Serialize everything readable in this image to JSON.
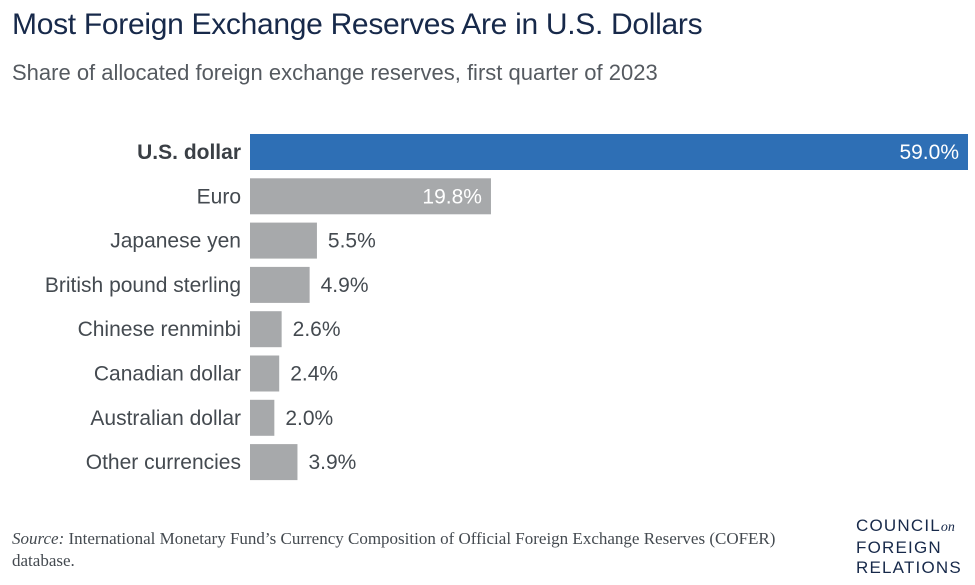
{
  "chart_data": {
    "type": "bar",
    "orientation": "horizontal",
    "title": "Most Foreign Exchange Reserves Are in U.S. Dollars",
    "subtitle": "Share of allocated foreign exchange reserves, first quarter of 2023",
    "categories": [
      "U.S. dollar",
      "Euro",
      "Japanese yen",
      "British pound sterling",
      "Chinese renminbi",
      "Canadian dollar",
      "Australian dollar",
      "Other currencies"
    ],
    "values": [
      59.0,
      19.8,
      5.5,
      4.9,
      2.6,
      2.4,
      2.0,
      3.9
    ],
    "value_labels": [
      "59.0%",
      "19.8%",
      "5.5%",
      "4.9%",
      "2.6%",
      "2.4%",
      "2.0%",
      "3.9%"
    ],
    "highlight_index": 0,
    "xlim": [
      0,
      59.0
    ],
    "grid": false,
    "colors": {
      "highlight": "#2e6fb5",
      "default": "#a7a9ab"
    }
  },
  "source": {
    "prefix": "Source:",
    "text": " International Monetary Fund’s Currency Composition of Official Foreign Exchange Reserves (COFER) database."
  },
  "logo": {
    "line1": "COUNCIL",
    "on": "on",
    "line2": "FOREIGN",
    "line3": "RELATIONS"
  }
}
